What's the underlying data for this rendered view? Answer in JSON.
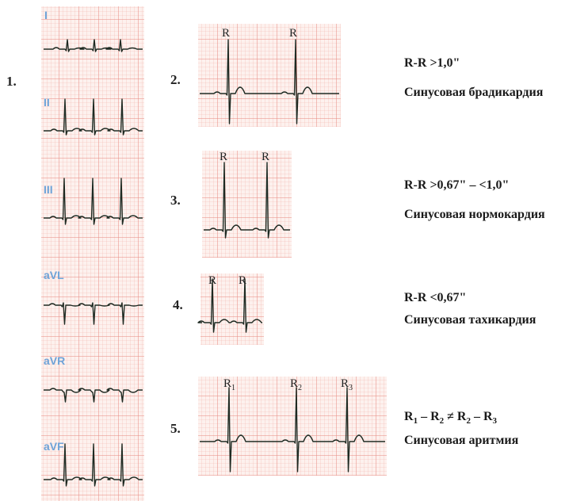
{
  "figure_numbers": [
    "1.",
    "2.",
    "3.",
    "4.",
    "5."
  ],
  "leads": [
    "I",
    "II",
    "III",
    "aVL",
    "aVR",
    "aVF"
  ],
  "strips": [
    {
      "r_labels": [
        "R",
        "R"
      ]
    },
    {
      "r_labels": [
        "R",
        "R"
      ]
    },
    {
      "r_labels": [
        "R",
        "R"
      ]
    },
    {
      "r_labels": [
        {
          "base": "R",
          "sub": "1"
        },
        {
          "base": "R",
          "sub": "2"
        },
        {
          "base": "R",
          "sub": "3"
        }
      ]
    }
  ],
  "rhythms": [
    {
      "criterion": "R-R >1,0\"",
      "name": "Синусовая брадикардия"
    },
    {
      "criterion": "R-R >0,67\" – <1,0\"",
      "name": "Синусовая нормокардия"
    },
    {
      "criterion": "R-R <0,67\"",
      "name": "Синусовая тахикардия"
    },
    {
      "formula": [
        "R",
        "1",
        " – ",
        "R",
        "2",
        " ≠ ",
        "R",
        "2",
        " – ",
        "R",
        "3"
      ],
      "name": "Синусовая аритмия"
    }
  ]
}
